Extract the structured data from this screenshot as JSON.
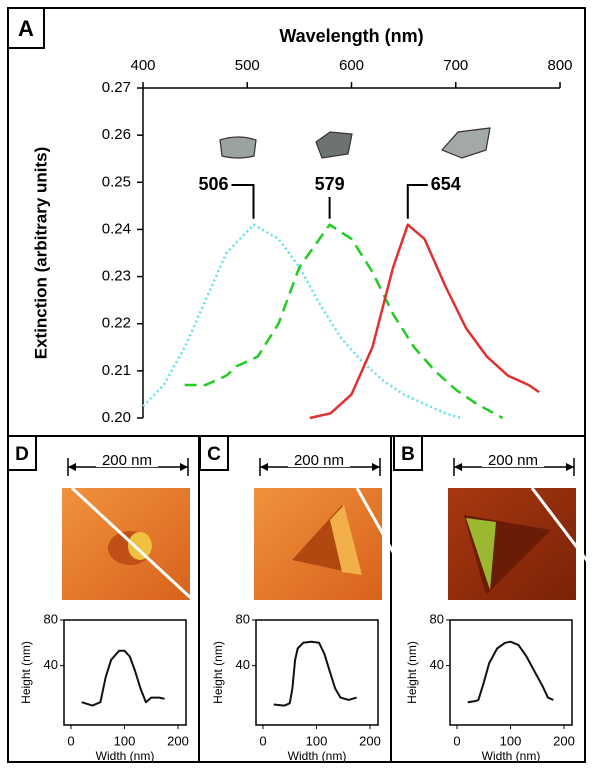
{
  "chart_data": [
    {
      "type": "line",
      "panel_label": "A",
      "x_label": "Wavelength (nm)",
      "y_label": "Extinction (arbitrary units)",
      "xlim": [
        400,
        800
      ],
      "xticks": [
        400,
        500,
        600,
        700,
        800
      ],
      "ylim": [
        0.2,
        0.27
      ],
      "yticks": [
        {
          "value": 0.2,
          "label": "0.20"
        },
        0.21,
        0.22,
        0.23,
        0.24,
        0.25,
        0.26,
        0.27
      ],
      "series": [
        {
          "color": "#5ee3ea",
          "style": "dotted",
          "x": [
            400,
            420,
            440,
            460,
            480,
            506,
            530,
            550,
            570,
            590,
            610,
            630,
            650,
            670,
            690,
            705
          ],
          "values": [
            0.2025,
            0.207,
            0.215,
            0.225,
            0.235,
            0.241,
            0.238,
            0.232,
            0.224,
            0.217,
            0.212,
            0.208,
            0.205,
            0.203,
            0.201,
            0.2
          ]
        },
        {
          "color": "#22cc22",
          "style": "dashed",
          "x": [
            440,
            460,
            480,
            490,
            510,
            530,
            550,
            579,
            600,
            620,
            640,
            660,
            680,
            700,
            720,
            745
          ],
          "values": [
            0.207,
            0.207,
            0.209,
            0.211,
            0.213,
            0.22,
            0.232,
            0.241,
            0.238,
            0.231,
            0.222,
            0.215,
            0.21,
            0.206,
            0.203,
            0.2
          ]
        },
        {
          "color": "#e03030",
          "style": "solid",
          "x": [
            560,
            580,
            600,
            620,
            640,
            654,
            670,
            690,
            710,
            730,
            750,
            770,
            780
          ],
          "values": [
            0.2,
            0.201,
            0.205,
            0.215,
            0.232,
            0.241,
            0.238,
            0.228,
            0.219,
            0.213,
            0.209,
            0.207,
            0.2055
          ]
        }
      ],
      "annotations": [
        {
          "text": "506",
          "x": 506,
          "y": 0.241
        },
        {
          "text": "579",
          "x": 579,
          "y": 0.241
        },
        {
          "text": "654",
          "x": 654,
          "y": 0.241
        }
      ]
    },
    {
      "type": "line",
      "panel_label": "D",
      "scale_label": "200 nm",
      "x_label": "Width (nm)",
      "y_label": "Height (nm)",
      "xlim": [
        -13,
        215
      ],
      "xticks": [
        0,
        100,
        200
      ],
      "ylim": [
        -12,
        80
      ],
      "yticks": [
        40,
        80
      ],
      "series": [
        {
          "color": "#111111",
          "style": "solid",
          "x": [
            20,
            40,
            55,
            65,
            75,
            90,
            100,
            110,
            120,
            130,
            140,
            150,
            165,
            175
          ],
          "values": [
            8,
            5,
            8,
            30,
            45,
            53,
            53,
            48,
            35,
            20,
            8,
            12,
            12,
            11
          ]
        }
      ]
    },
    {
      "type": "line",
      "panel_label": "C",
      "scale_label": "200 nm",
      "x_label": "Width (nm)",
      "y_label": "Height (nm)",
      "xlim": [
        -13,
        215
      ],
      "xticks": [
        0,
        100,
        200
      ],
      "ylim": [
        -12,
        80
      ],
      "yticks": [
        40,
        80
      ],
      "series": [
        {
          "color": "#111111",
          "style": "solid",
          "x": [
            20,
            40,
            50,
            55,
            60,
            65,
            75,
            90,
            105,
            115,
            125,
            135,
            145,
            160,
            175
          ],
          "values": [
            6,
            5,
            7,
            20,
            45,
            55,
            60,
            61,
            60,
            50,
            35,
            20,
            12,
            10,
            12
          ]
        }
      ]
    },
    {
      "type": "line",
      "panel_label": "B",
      "scale_label": "200 nm",
      "x_label": "Width (nm)",
      "y_label": "Height (nm)",
      "xlim": [
        -13,
        215
      ],
      "xticks": [
        0,
        100,
        200
      ],
      "ylim": [
        -12,
        80
      ],
      "yticks": [
        40,
        80
      ],
      "series": [
        {
          "color": "#111111",
          "style": "solid",
          "x": [
            20,
            35,
            40,
            50,
            60,
            75,
            90,
            100,
            115,
            130,
            145,
            160,
            170,
            180
          ],
          "values": [
            8,
            9,
            10,
            25,
            42,
            55,
            60,
            61,
            58,
            48,
            35,
            22,
            12,
            10
          ]
        }
      ]
    }
  ]
}
